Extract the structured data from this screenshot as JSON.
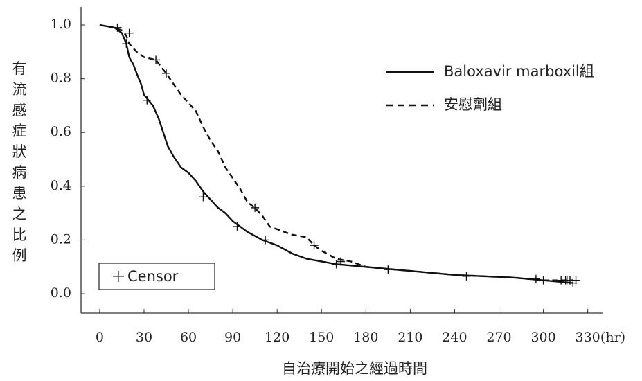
{
  "chart_data": {
    "type": "line",
    "ylabel": "有流感症狀病患之比例",
    "xlabel": "自治療開始之經過時間",
    "x_unit": "(hr)",
    "censor_label": "Censor",
    "xlim": [
      -12.6,
      340
    ],
    "ylim": [
      -0.072,
      1.067
    ],
    "xticks": [
      0,
      30,
      60,
      90,
      120,
      150,
      180,
      210,
      240,
      270,
      300,
      330
    ],
    "yticks": [
      {
        "value": 0,
        "label": "0.0"
      },
      {
        "value": 0.2,
        "label": "0.2"
      },
      {
        "value": 0.4,
        "label": "0.4"
      },
      {
        "value": 0.6,
        "label": "0.6"
      },
      {
        "value": 0.8,
        "label": "0.8"
      },
      {
        "value": 1,
        "label": "1.0"
      }
    ],
    "legend": "upper right",
    "series": [
      {
        "name": "Baloxavir marboxil組",
        "color": "#111111",
        "style": "solid",
        "x": [
          0,
          5,
          10,
          15,
          18,
          20,
          23,
          25,
          28,
          30,
          33,
          36,
          40,
          43,
          46,
          50,
          55,
          60,
          65,
          70,
          75,
          80,
          85,
          90,
          95,
          100,
          110,
          120,
          130,
          140,
          150,
          160,
          170,
          180,
          200,
          220,
          240,
          260,
          280,
          300,
          310,
          320
        ],
        "values": [
          1.0,
          0.995,
          0.99,
          0.97,
          0.93,
          0.88,
          0.85,
          0.82,
          0.78,
          0.74,
          0.72,
          0.7,
          0.65,
          0.6,
          0.55,
          0.51,
          0.47,
          0.45,
          0.42,
          0.38,
          0.35,
          0.32,
          0.3,
          0.27,
          0.25,
          0.23,
          0.2,
          0.18,
          0.15,
          0.13,
          0.12,
          0.11,
          0.105,
          0.1,
          0.09,
          0.08,
          0.07,
          0.065,
          0.06,
          0.05,
          0.045,
          0.04
        ],
        "censor_x": [
          18,
          32,
          70,
          93,
          112,
          160,
          195,
          248,
          300,
          312,
          316,
          320
        ],
        "censor_y": [
          0.93,
          0.72,
          0.36,
          0.25,
          0.2,
          0.11,
          0.09,
          0.065,
          0.05,
          0.05,
          0.05,
          0.04
        ]
      },
      {
        "name": "安慰劑組",
        "color": "#111111",
        "style": "dashed",
        "x": [
          0,
          10,
          15,
          18,
          20,
          25,
          30,
          38,
          42,
          45,
          50,
          55,
          60,
          65,
          70,
          75,
          80,
          85,
          90,
          95,
          100,
          105,
          110,
          115,
          120,
          130,
          140,
          145,
          150,
          160,
          170,
          180,
          200,
          220,
          240,
          260,
          280,
          300,
          320
        ],
        "values": [
          1.0,
          0.99,
          0.98,
          0.96,
          0.93,
          0.9,
          0.88,
          0.87,
          0.84,
          0.82,
          0.78,
          0.74,
          0.71,
          0.68,
          0.62,
          0.57,
          0.53,
          0.47,
          0.43,
          0.39,
          0.34,
          0.32,
          0.29,
          0.25,
          0.24,
          0.22,
          0.21,
          0.18,
          0.16,
          0.13,
          0.12,
          0.1,
          0.09,
          0.08,
          0.07,
          0.065,
          0.06,
          0.05,
          0.05
        ],
        "censor_x": [
          12,
          20,
          38,
          45,
          105,
          145,
          163,
          295,
          315,
          318,
          322
        ],
        "censor_y": [
          0.99,
          0.97,
          0.87,
          0.82,
          0.32,
          0.18,
          0.12,
          0.055,
          0.05,
          0.05,
          0.05
        ]
      }
    ]
  }
}
